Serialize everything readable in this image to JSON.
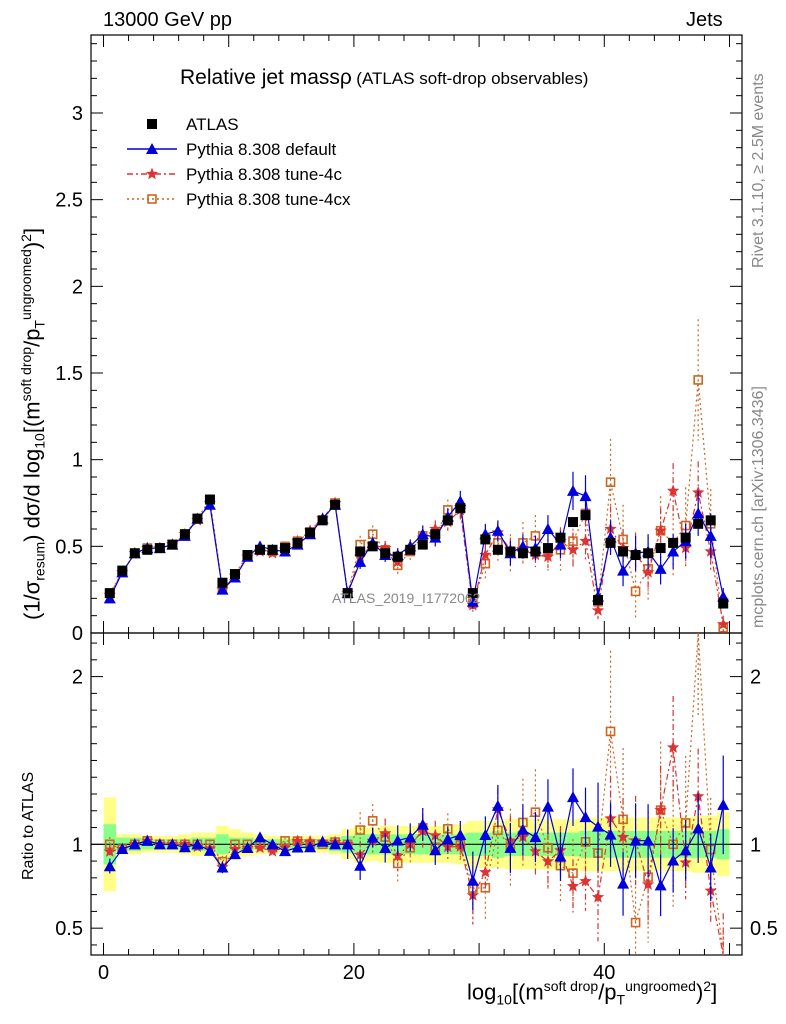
{
  "header": {
    "energy_label": "13000 GeV pp",
    "process_label": "Jets"
  },
  "side_labels": {
    "rivet": "Rivet 3.1.10, ≥ 2.5M events",
    "mcplots": "mcplots.cern.ch [arXiv:1306.3436]"
  },
  "watermark": "ATLAS_2019_I1772062",
  "chart_data": {
    "type": "scatter",
    "title": "Relative jet massρ",
    "subtitle": "(ATLAS soft-drop observables)",
    "xlabel": "log10[(m^{soft drop}/p_T^{ungroomed})^2]",
    "ylabel": "(1/σ_resum) dσ/d log10[(m^{soft drop}/p_T^{ungroomed})^2]",
    "ratio_ylabel": "Ratio to ATLAS",
    "xlim": [
      -1,
      51
    ],
    "ylim": [
      0,
      3.45
    ],
    "ratio_ylim": [
      0.34,
      2.26
    ],
    "x_ticks": [
      0,
      20,
      40
    ],
    "y_ticks": [
      0,
      0.5,
      1,
      1.5,
      2,
      2.5,
      3
    ],
    "ratio_y_ticks": [
      0.5,
      1,
      2
    ],
    "x": [
      0.5,
      1.5,
      2.5,
      3.5,
      4.5,
      5.5,
      6.5,
      7.5,
      8.5,
      9.5,
      10.5,
      11.5,
      12.5,
      13.5,
      14.5,
      15.5,
      16.5,
      17.5,
      18.5,
      19.5,
      20.5,
      21.5,
      22.5,
      23.5,
      24.5,
      25.5,
      26.5,
      27.5,
      28.5,
      29.5,
      30.5,
      31.5,
      32.5,
      33.5,
      34.5,
      35.5,
      36.5,
      37.5,
      38.5,
      39.5,
      40.5,
      41.5,
      42.5,
      43.5,
      44.5,
      45.5,
      46.5,
      47.5,
      48.5,
      49.5
    ],
    "series": [
      {
        "name": "ATLAS",
        "values": [
          0.23,
          0.36,
          0.46,
          0.48,
          0.49,
          0.51,
          0.57,
          0.66,
          0.77,
          0.29,
          0.34,
          0.45,
          0.48,
          0.48,
          0.49,
          0.52,
          0.58,
          0.65,
          0.74,
          0.23,
          0.47,
          0.5,
          0.46,
          0.44,
          0.48,
          0.51,
          0.57,
          0.65,
          0.72,
          0.23,
          0.54,
          0.48,
          0.47,
          0.46,
          0.47,
          0.49,
          0.55,
          0.64,
          0.68,
          0.19,
          0.52,
          0.47,
          0.45,
          0.46,
          0.49,
          0.52,
          0.55,
          0.63,
          0.65,
          0.17
        ],
        "errors": [
          0.01,
          0.01,
          0.01,
          0.01,
          0.01,
          0.01,
          0.01,
          0.01,
          0.01,
          0.01,
          0.01,
          0.01,
          0.01,
          0.01,
          0.01,
          0.01,
          0.01,
          0.01,
          0.01,
          0.01,
          0.01,
          0.01,
          0.01,
          0.01,
          0.01,
          0.01,
          0.01,
          0.01,
          0.01,
          0.01,
          0.01,
          0.01,
          0.01,
          0.01,
          0.01,
          0.01,
          0.01,
          0.01,
          0.01,
          0.01,
          0.01,
          0.01,
          0.01,
          0.01,
          0.01,
          0.01,
          0.01,
          0.01,
          0.01,
          0.02
        ],
        "color": "#000000",
        "marker": "square"
      },
      {
        "name": "Pythia 8.308 default",
        "values": [
          0.2,
          0.35,
          0.46,
          0.49,
          0.49,
          0.51,
          0.56,
          0.66,
          0.74,
          0.25,
          0.32,
          0.44,
          0.5,
          0.48,
          0.47,
          0.51,
          0.57,
          0.66,
          0.74,
          0.23,
          0.41,
          0.52,
          0.45,
          0.45,
          0.5,
          0.57,
          0.55,
          0.67,
          0.76,
          0.18,
          0.57,
          0.59,
          0.46,
          0.5,
          0.49,
          0.6,
          0.51,
          0.82,
          0.79,
          0.21,
          0.55,
          0.36,
          0.46,
          0.47,
          0.37,
          0.47,
          0.53,
          0.69,
          0.56,
          0.21
        ],
        "errors": [
          0.01,
          0.01,
          0.01,
          0.01,
          0.01,
          0.01,
          0.01,
          0.01,
          0.02,
          0.01,
          0.01,
          0.01,
          0.01,
          0.01,
          0.01,
          0.01,
          0.01,
          0.01,
          0.02,
          0.02,
          0.04,
          0.03,
          0.04,
          0.04,
          0.04,
          0.05,
          0.05,
          0.05,
          0.06,
          0.04,
          0.06,
          0.06,
          0.07,
          0.07,
          0.07,
          0.08,
          0.08,
          0.11,
          0.12,
          0.05,
          0.1,
          0.09,
          0.1,
          0.1,
          0.09,
          0.1,
          0.1,
          0.13,
          0.13,
          0.05
        ],
        "color": "#0000dd",
        "marker": "triangle",
        "dash": ""
      },
      {
        "name": "Pythia 8.308 tune-4c",
        "values": [
          0.22,
          0.35,
          0.46,
          0.49,
          0.49,
          0.51,
          0.57,
          0.65,
          0.75,
          0.25,
          0.33,
          0.44,
          0.47,
          0.46,
          0.48,
          0.53,
          0.59,
          0.66,
          0.75,
          0.23,
          0.44,
          0.51,
          0.49,
          0.41,
          0.48,
          0.55,
          0.6,
          0.64,
          0.71,
          0.16,
          0.45,
          0.58,
          0.48,
          0.48,
          0.45,
          0.44,
          0.53,
          0.48,
          0.53,
          0.13,
          0.6,
          0.49,
          0.46,
          0.35,
          0.59,
          0.82,
          0.49,
          0.81,
          0.47,
          0.05
        ],
        "errors": [
          0.01,
          0.01,
          0.01,
          0.01,
          0.01,
          0.01,
          0.01,
          0.01,
          0.02,
          0.01,
          0.01,
          0.01,
          0.01,
          0.01,
          0.01,
          0.01,
          0.01,
          0.01,
          0.02,
          0.02,
          0.04,
          0.04,
          0.04,
          0.04,
          0.04,
          0.05,
          0.05,
          0.05,
          0.06,
          0.04,
          0.06,
          0.06,
          0.07,
          0.07,
          0.07,
          0.08,
          0.08,
          0.1,
          0.12,
          0.05,
          0.13,
          0.11,
          0.12,
          0.11,
          0.13,
          0.16,
          0.12,
          0.18,
          0.12,
          0.05
        ],
        "color": "#dd3333",
        "marker": "star",
        "dash": "6,3,2,3"
      },
      {
        "name": "Pythia 8.308 tune-4cx",
        "values": [
          0.23,
          0.35,
          0.46,
          0.49,
          0.49,
          0.51,
          0.57,
          0.66,
          0.77,
          0.26,
          0.34,
          0.45,
          0.48,
          0.47,
          0.5,
          0.53,
          0.58,
          0.65,
          0.75,
          0.23,
          0.51,
          0.57,
          0.48,
          0.39,
          0.47,
          0.56,
          0.56,
          0.71,
          0.72,
          0.17,
          0.4,
          0.52,
          0.46,
          0.52,
          0.56,
          0.48,
          0.48,
          0.53,
          0.69,
          0.18,
          0.87,
          0.54,
          0.24,
          0.37,
          0.59,
          0.52,
          0.62,
          1.46,
          0.63,
          0.03
        ],
        "errors": [
          0.01,
          0.01,
          0.01,
          0.01,
          0.01,
          0.01,
          0.01,
          0.01,
          0.02,
          0.01,
          0.01,
          0.01,
          0.01,
          0.01,
          0.01,
          0.01,
          0.01,
          0.01,
          0.02,
          0.02,
          0.05,
          0.05,
          0.05,
          0.05,
          0.05,
          0.06,
          0.06,
          0.06,
          0.07,
          0.05,
          0.1,
          0.11,
          0.11,
          0.12,
          0.12,
          0.12,
          0.12,
          0.13,
          0.14,
          0.06,
          0.25,
          0.2,
          0.15,
          0.18,
          0.2,
          0.2,
          0.22,
          0.35,
          0.2,
          0.05
        ],
        "color": "#cc6622",
        "marker": "open-square",
        "dash": "2,3"
      }
    ],
    "ratio_band_inner": [
      0.12,
      0.04,
      0.04,
      0.03,
      0.03,
      0.03,
      0.03,
      0.04,
      0.04,
      0.06,
      0.04,
      0.04,
      0.03,
      0.03,
      0.03,
      0.03,
      0.03,
      0.03,
      0.04,
      0.05,
      0.06,
      0.06,
      0.06,
      0.06,
      0.06,
      0.06,
      0.06,
      0.06,
      0.06,
      0.07,
      0.07,
      0.08,
      0.07,
      0.07,
      0.07,
      0.07,
      0.07,
      0.07,
      0.08,
      0.08,
      0.08,
      0.08,
      0.08,
      0.08,
      0.08,
      0.08,
      0.08,
      0.08,
      0.08,
      0.09
    ],
    "ratio_band_outer": [
      0.28,
      0.06,
      0.06,
      0.05,
      0.05,
      0.05,
      0.06,
      0.07,
      0.07,
      0.11,
      0.09,
      0.07,
      0.06,
      0.05,
      0.05,
      0.05,
      0.05,
      0.05,
      0.06,
      0.09,
      0.11,
      0.1,
      0.11,
      0.11,
      0.11,
      0.11,
      0.11,
      0.11,
      0.12,
      0.14,
      0.14,
      0.14,
      0.15,
      0.15,
      0.15,
      0.15,
      0.15,
      0.15,
      0.16,
      0.16,
      0.16,
      0.16,
      0.16,
      0.16,
      0.16,
      0.16,
      0.16,
      0.17,
      0.17,
      0.19
    ],
    "legend_position": "top-left",
    "grid": false
  }
}
